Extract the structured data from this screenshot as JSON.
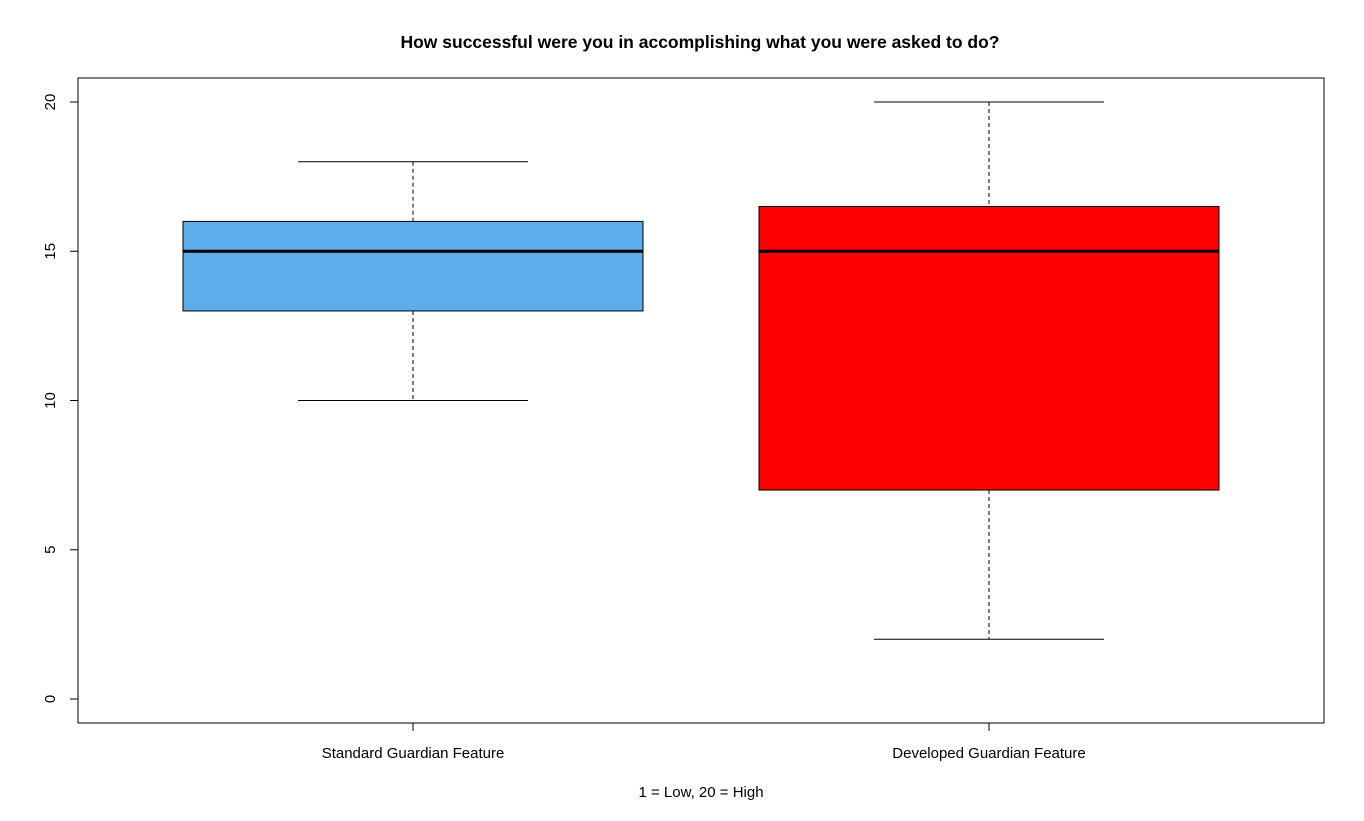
{
  "chart_data": {
    "type": "boxplot",
    "title": "How successful were you in accomplishing what you were asked to do?",
    "xlabel": "1 = Low, 20 = High",
    "ylabel": "",
    "ylim": [
      0,
      20
    ],
    "y_ticks": [
      0,
      5,
      10,
      15,
      20
    ],
    "grid": false,
    "categories": [
      "Standard Guardian Feature",
      "Developed Guardian Feature"
    ],
    "boxes": [
      {
        "category": "Standard Guardian Feature",
        "whisker_low": 10,
        "q1": 13,
        "median": 15,
        "q3": 16,
        "whisker_high": 18,
        "color": "#5DADEC"
      },
      {
        "category": "Developed Guardian Feature",
        "whisker_low": 2,
        "q1": 7,
        "median": 15,
        "q3": 16.5,
        "whisker_high": 20,
        "color": "#FF0000"
      }
    ]
  }
}
